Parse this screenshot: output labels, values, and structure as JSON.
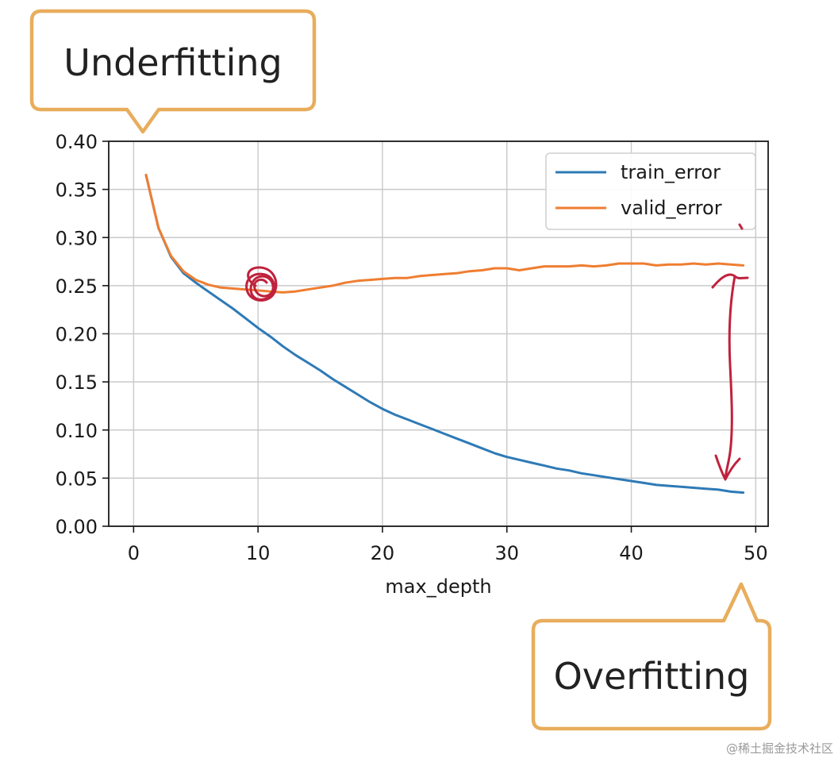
{
  "chart_data": {
    "type": "line",
    "xlabel": "max_depth",
    "ylabel": "",
    "xlim": [
      -2,
      51
    ],
    "ylim": [
      0.0,
      0.4
    ],
    "xticks": [
      "0",
      "10",
      "20",
      "30",
      "40",
      "50"
    ],
    "xtick_values": [
      0,
      10,
      20,
      30,
      40,
      50
    ],
    "yticks": [
      "0.00",
      "0.05",
      "0.10",
      "0.15",
      "0.20",
      "0.25",
      "0.30",
      "0.35",
      "0.40"
    ],
    "ytick_values": [
      0.0,
      0.05,
      0.1,
      0.15,
      0.2,
      0.25,
      0.3,
      0.35,
      0.4
    ],
    "grid": true,
    "legend_position": "top-right",
    "series": [
      {
        "name": "train_error",
        "color": "#2e7ab6",
        "x": [
          1,
          2,
          3,
          4,
          5,
          6,
          7,
          8,
          9,
          10,
          11,
          12,
          13,
          14,
          15,
          16,
          17,
          18,
          19,
          20,
          21,
          22,
          23,
          24,
          25,
          26,
          27,
          28,
          29,
          30,
          31,
          32,
          33,
          34,
          35,
          36,
          37,
          38,
          39,
          40,
          41,
          42,
          43,
          44,
          45,
          46,
          47,
          48,
          49
        ],
        "y": [
          0.365,
          0.31,
          0.28,
          0.263,
          0.253,
          0.244,
          0.235,
          0.226,
          0.216,
          0.206,
          0.197,
          0.187,
          0.178,
          0.17,
          0.162,
          0.153,
          0.145,
          0.137,
          0.129,
          0.122,
          0.116,
          0.111,
          0.106,
          0.101,
          0.096,
          0.091,
          0.086,
          0.081,
          0.076,
          0.072,
          0.069,
          0.066,
          0.063,
          0.06,
          0.058,
          0.055,
          0.053,
          0.051,
          0.049,
          0.047,
          0.045,
          0.043,
          0.042,
          0.041,
          0.04,
          0.039,
          0.038,
          0.036,
          0.035
        ]
      },
      {
        "name": "valid_error",
        "color": "#ef7d31",
        "x": [
          1,
          2,
          3,
          4,
          5,
          6,
          7,
          8,
          9,
          10,
          11,
          12,
          13,
          14,
          15,
          16,
          17,
          18,
          19,
          20,
          21,
          22,
          23,
          24,
          25,
          26,
          27,
          28,
          29,
          30,
          31,
          32,
          33,
          34,
          35,
          36,
          37,
          38,
          39,
          40,
          41,
          42,
          43,
          44,
          45,
          46,
          47,
          48,
          49
        ],
        "y": [
          0.365,
          0.31,
          0.281,
          0.265,
          0.256,
          0.251,
          0.248,
          0.247,
          0.246,
          0.245,
          0.244,
          0.243,
          0.244,
          0.246,
          0.248,
          0.25,
          0.253,
          0.255,
          0.256,
          0.257,
          0.258,
          0.258,
          0.26,
          0.261,
          0.262,
          0.263,
          0.265,
          0.266,
          0.268,
          0.268,
          0.266,
          0.268,
          0.27,
          0.27,
          0.27,
          0.271,
          0.27,
          0.271,
          0.273,
          0.273,
          0.273,
          0.271,
          0.272,
          0.272,
          0.273,
          0.272,
          0.273,
          0.272,
          0.271
        ]
      }
    ],
    "annotations": [
      {
        "text": "Underfitting",
        "anchor_x": 1
      },
      {
        "text": "Overfitting",
        "anchor_x": 49
      }
    ]
  },
  "callouts": {
    "underfitting": "Underfitting",
    "overfitting": "Overfitting"
  },
  "colors": {
    "callout_border": "#e8ad5c",
    "handwriting": "#c0213c",
    "grid": "#c9c9c9",
    "axis": "#1a1a1a"
  },
  "watermark": "@稀土掘金技术社区"
}
